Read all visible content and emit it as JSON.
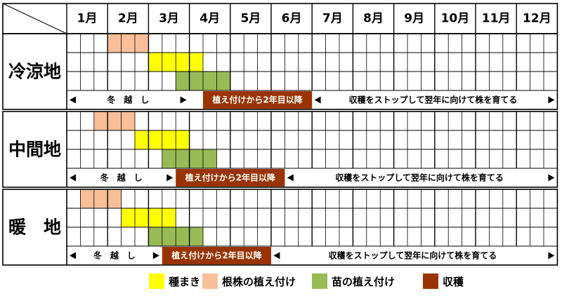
{
  "months": [
    "1月",
    "2月",
    "3月",
    "4月",
    "5月",
    "6月",
    "7月",
    "8月",
    "9月",
    "10月",
    "11月",
    "12月"
  ],
  "colors": {
    "sowing": "#ffff00",
    "root_planting": "#f9bf98",
    "seedling_planting": "#99bb55",
    "harvest": "#993300",
    "grid": "#000000"
  },
  "regions": [
    {
      "name": "冷涼地",
      "root_planting": [
        3,
        6
      ],
      "sowing": [
        6,
        10
      ],
      "seedling_planting": [
        8,
        12
      ],
      "overwinter": {
        "label": "冬　越　し",
        "start": 0,
        "end": 9
      },
      "harvest": {
        "label": "植え付けから2年目以降",
        "start": 10,
        "end": 18
      },
      "rest": {
        "label": "収穫をストップして翌年に向けて株を育てる",
        "start": 19,
        "end": 36
      }
    },
    {
      "name": "中間地",
      "root_planting": [
        2,
        5
      ],
      "sowing": [
        5,
        9
      ],
      "seedling_planting": [
        7,
        11
      ],
      "overwinter": {
        "label": "冬　越　し",
        "start": 0,
        "end": 8
      },
      "harvest": {
        "label": "植え付けから2年目以降",
        "start": 8,
        "end": 16
      },
      "rest": {
        "label": "収穫をストップして翌年に向けて株を育てる",
        "start": 17,
        "end": 36
      }
    },
    {
      "name": "暖　地",
      "root_planting": [
        1,
        4
      ],
      "sowing": [
        4,
        8
      ],
      "seedling_planting": [
        6,
        10
      ],
      "overwinter": {
        "label": "冬　越　し",
        "start": 0,
        "end": 7
      },
      "harvest": {
        "label": "植え付けから2年目以降",
        "start": 7,
        "end": 15
      },
      "rest": {
        "label": "収穫をストップして翌年に向けて株を育てる",
        "start": 16,
        "end": 36
      }
    }
  ],
  "legend": [
    {
      "key": "sowing",
      "label": "種まき"
    },
    {
      "key": "root_planting",
      "label": "根株の植え付け"
    },
    {
      "key": "seedling_planting",
      "label": "苗の植え付け"
    },
    {
      "key": "harvest",
      "label": "収穫"
    }
  ]
}
